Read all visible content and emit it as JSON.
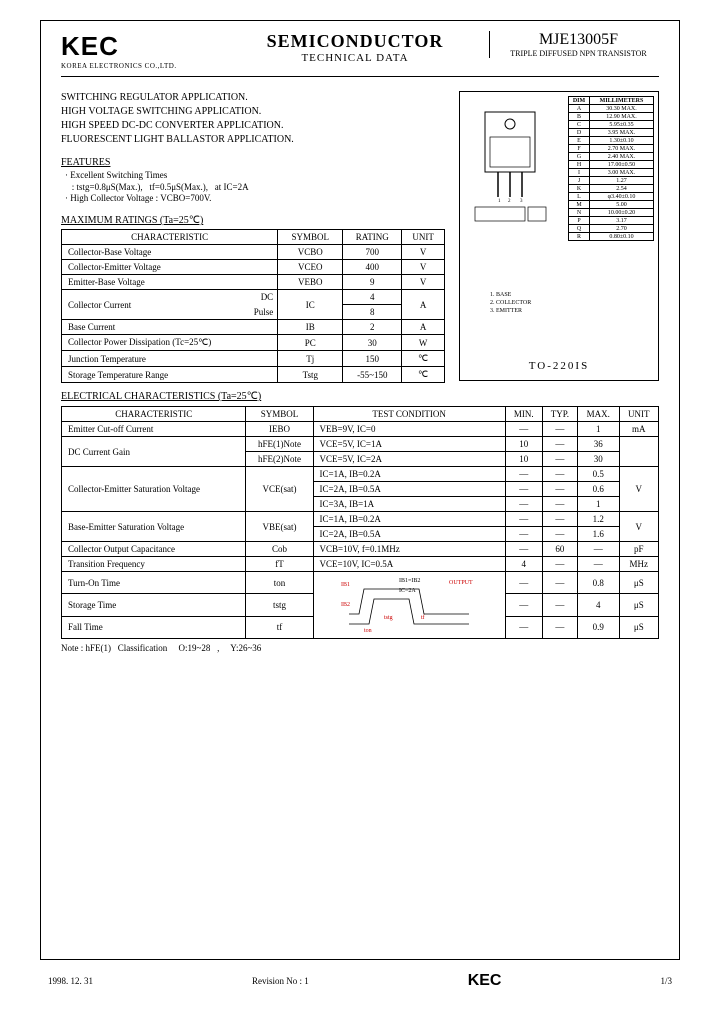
{
  "header": {
    "logo": "KEC",
    "logo_sub": "KOREA ELECTRONICS CO.,LTD.",
    "title_main": "SEMICONDUCTOR",
    "title_sub": "TECHNICAL DATA",
    "part_no": "MJE13005F",
    "part_desc": "TRIPLE DIFFUSED NPN TRANSISTOR"
  },
  "apps": [
    "SWITCHING REGULATOR APPLICATION.",
    "HIGH VOLTAGE SWITCHING APPLICATION.",
    "HIGH SPEED DC-DC CONVERTER APPLICATION.",
    "FLUORESCENT LIGHT BALLASTOR APPLICATION."
  ],
  "features_hd": "FEATURES",
  "features": [
    "· Excellent Switching Times",
    "   : tstg=0.8μS(Max.),   tf=0.5μS(Max.),   at IC=2A",
    "· High Collector Voltage : VCBO=700V."
  ],
  "max_ratings_hd": "MAXIMUM RATINGS (Ta=25℃)",
  "max_ratings": {
    "headers": [
      "CHARACTERISTIC",
      "SYMBOL",
      "RATING",
      "UNIT"
    ],
    "rows": [
      {
        "c": "Collector-Base Voltage",
        "s": "VCBO",
        "r": "700",
        "u": "V",
        "rs": 1
      },
      {
        "c": "Collector-Emitter Voltage",
        "s": "VCEO",
        "r": "400",
        "u": "V",
        "rs": 1
      },
      {
        "c": "Emitter-Base Voltage",
        "s": "VEBO",
        "r": "9",
        "u": "V",
        "rs": 1
      },
      {
        "c": "Collector Current",
        "sub": "DC",
        "s": "IC",
        "r": "4",
        "u": "A",
        "rs": 2
      },
      {
        "sub": "Pulse",
        "r": "8"
      },
      {
        "c": "Base Current",
        "s": "IB",
        "r": "2",
        "u": "A",
        "rs": 1
      },
      {
        "c": "Collector Power Dissipation (Tc=25℃)",
        "s": "PC",
        "r": "30",
        "u": "W",
        "rs": 1
      },
      {
        "c": "Junction Temperature",
        "s": "Tj",
        "r": "150",
        "u": "℃",
        "rs": 1
      },
      {
        "c": "Storage Temperature Range",
        "s": "Tstg",
        "r": "-55~150",
        "u": "℃",
        "rs": 1
      }
    ]
  },
  "package": {
    "label": "TO-220IS",
    "pins": [
      "1. BASE",
      "2. COLLECTOR",
      "3. EMITTER"
    ],
    "dims_header": [
      "DIM",
      "MILLIMETERS"
    ],
    "dims": [
      [
        "A",
        "30.30 MAX."
      ],
      [
        "B",
        "12.90 MAX."
      ],
      [
        "C",
        "5.95±0.35"
      ],
      [
        "D",
        "3.95 MAX."
      ],
      [
        "E",
        "1.30±0.10"
      ],
      [
        "F",
        "2.70 MAX."
      ],
      [
        "G",
        "2.40 MAX."
      ],
      [
        "H",
        "17.00±0.50"
      ],
      [
        "I",
        "3.00 MAX."
      ],
      [
        "J",
        "1.27"
      ],
      [
        "K",
        "2.54"
      ],
      [
        "L",
        "φ3.40±0.10"
      ],
      [
        "M",
        "5.00"
      ],
      [
        "N",
        "10.00±0.20"
      ],
      [
        "P",
        "3.17"
      ],
      [
        "Q",
        "2.70"
      ],
      [
        "R",
        "0.80±0.10"
      ]
    ]
  },
  "elec_hd": "ELECTRICAL CHARACTERISTICS (Ta=25℃)",
  "elec": {
    "headers": [
      "CHARACTERISTIC",
      "SYMBOL",
      "TEST CONDITION",
      "MIN.",
      "TYP.",
      "MAX.",
      "UNIT"
    ],
    "rows": [
      {
        "c": "Emitter Cut-off Current",
        "s": "IEBO",
        "t": "VEB=9V,   IC=0",
        "min": "—",
        "typ": "—",
        "max": "1",
        "u": "mA"
      },
      {
        "c": "DC Current Gain",
        "rs": 2,
        "s": "hFE(1)Note",
        "t": "VCE=5V,   IC=1A",
        "min": "10",
        "typ": "—",
        "max": "36",
        "u": ""
      },
      {
        "s": "hFE(2)Note",
        "t": "VCE=5V,   IC=2A",
        "min": "10",
        "typ": "—",
        "max": "30",
        "u": ""
      },
      {
        "c": "Collector-Emitter Saturation Voltage",
        "rs": 3,
        "s": "VCE(sat)",
        "srs": 3,
        "t": "IC=1A,   IB=0.2A",
        "min": "—",
        "typ": "—",
        "max": "0.5",
        "u": "V",
        "urs": 3
      },
      {
        "t": "IC=2A,   IB=0.5A",
        "min": "—",
        "typ": "—",
        "max": "0.6"
      },
      {
        "t": "IC=3A,   IB=1A",
        "min": "—",
        "typ": "—",
        "max": "1"
      },
      {
        "c": "Base-Emitter Saturation Voltage",
        "rs": 2,
        "s": "VBE(sat)",
        "srs": 2,
        "t": "IC=1A,   IB=0.2A",
        "min": "—",
        "typ": "—",
        "max": "1.2",
        "u": "V",
        "urs": 2
      },
      {
        "t": "IC=2A,   IB=0.5A",
        "min": "—",
        "typ": "—",
        "max": "1.6"
      },
      {
        "c": "Collector Output Capacitance",
        "s": "Cob",
        "t": "VCB=10V,   f=0.1MHz",
        "min": "—",
        "typ": "60",
        "max": "—",
        "u": "pF"
      },
      {
        "c": "Transition Frequency",
        "s": "fT",
        "t": "VCE=10V,   IC=0.5A",
        "min": "4",
        "typ": "—",
        "max": "—",
        "u": "MHz"
      },
      {
        "c": "Turn-On Time",
        "s": "ton",
        "t": "__TIMING__",
        "trs": 3,
        "min": "—",
        "typ": "—",
        "max": "0.8",
        "u": "μS"
      },
      {
        "c": "Storage Time",
        "s": "tstg",
        "min": "—",
        "typ": "—",
        "max": "4",
        "u": "μS"
      },
      {
        "c": "Fall Time",
        "s": "tf",
        "min": "—",
        "typ": "—",
        "max": "0.9",
        "u": "μS"
      }
    ]
  },
  "note": "Note : hFE(1)   Classification     O:19~28   ,     Y:26~36",
  "footer": {
    "date": "1998. 12. 31",
    "rev": "Revision No : 1",
    "logo": "KEC",
    "page": "1/3"
  },
  "colors": {
    "accent": "#cc0000"
  }
}
